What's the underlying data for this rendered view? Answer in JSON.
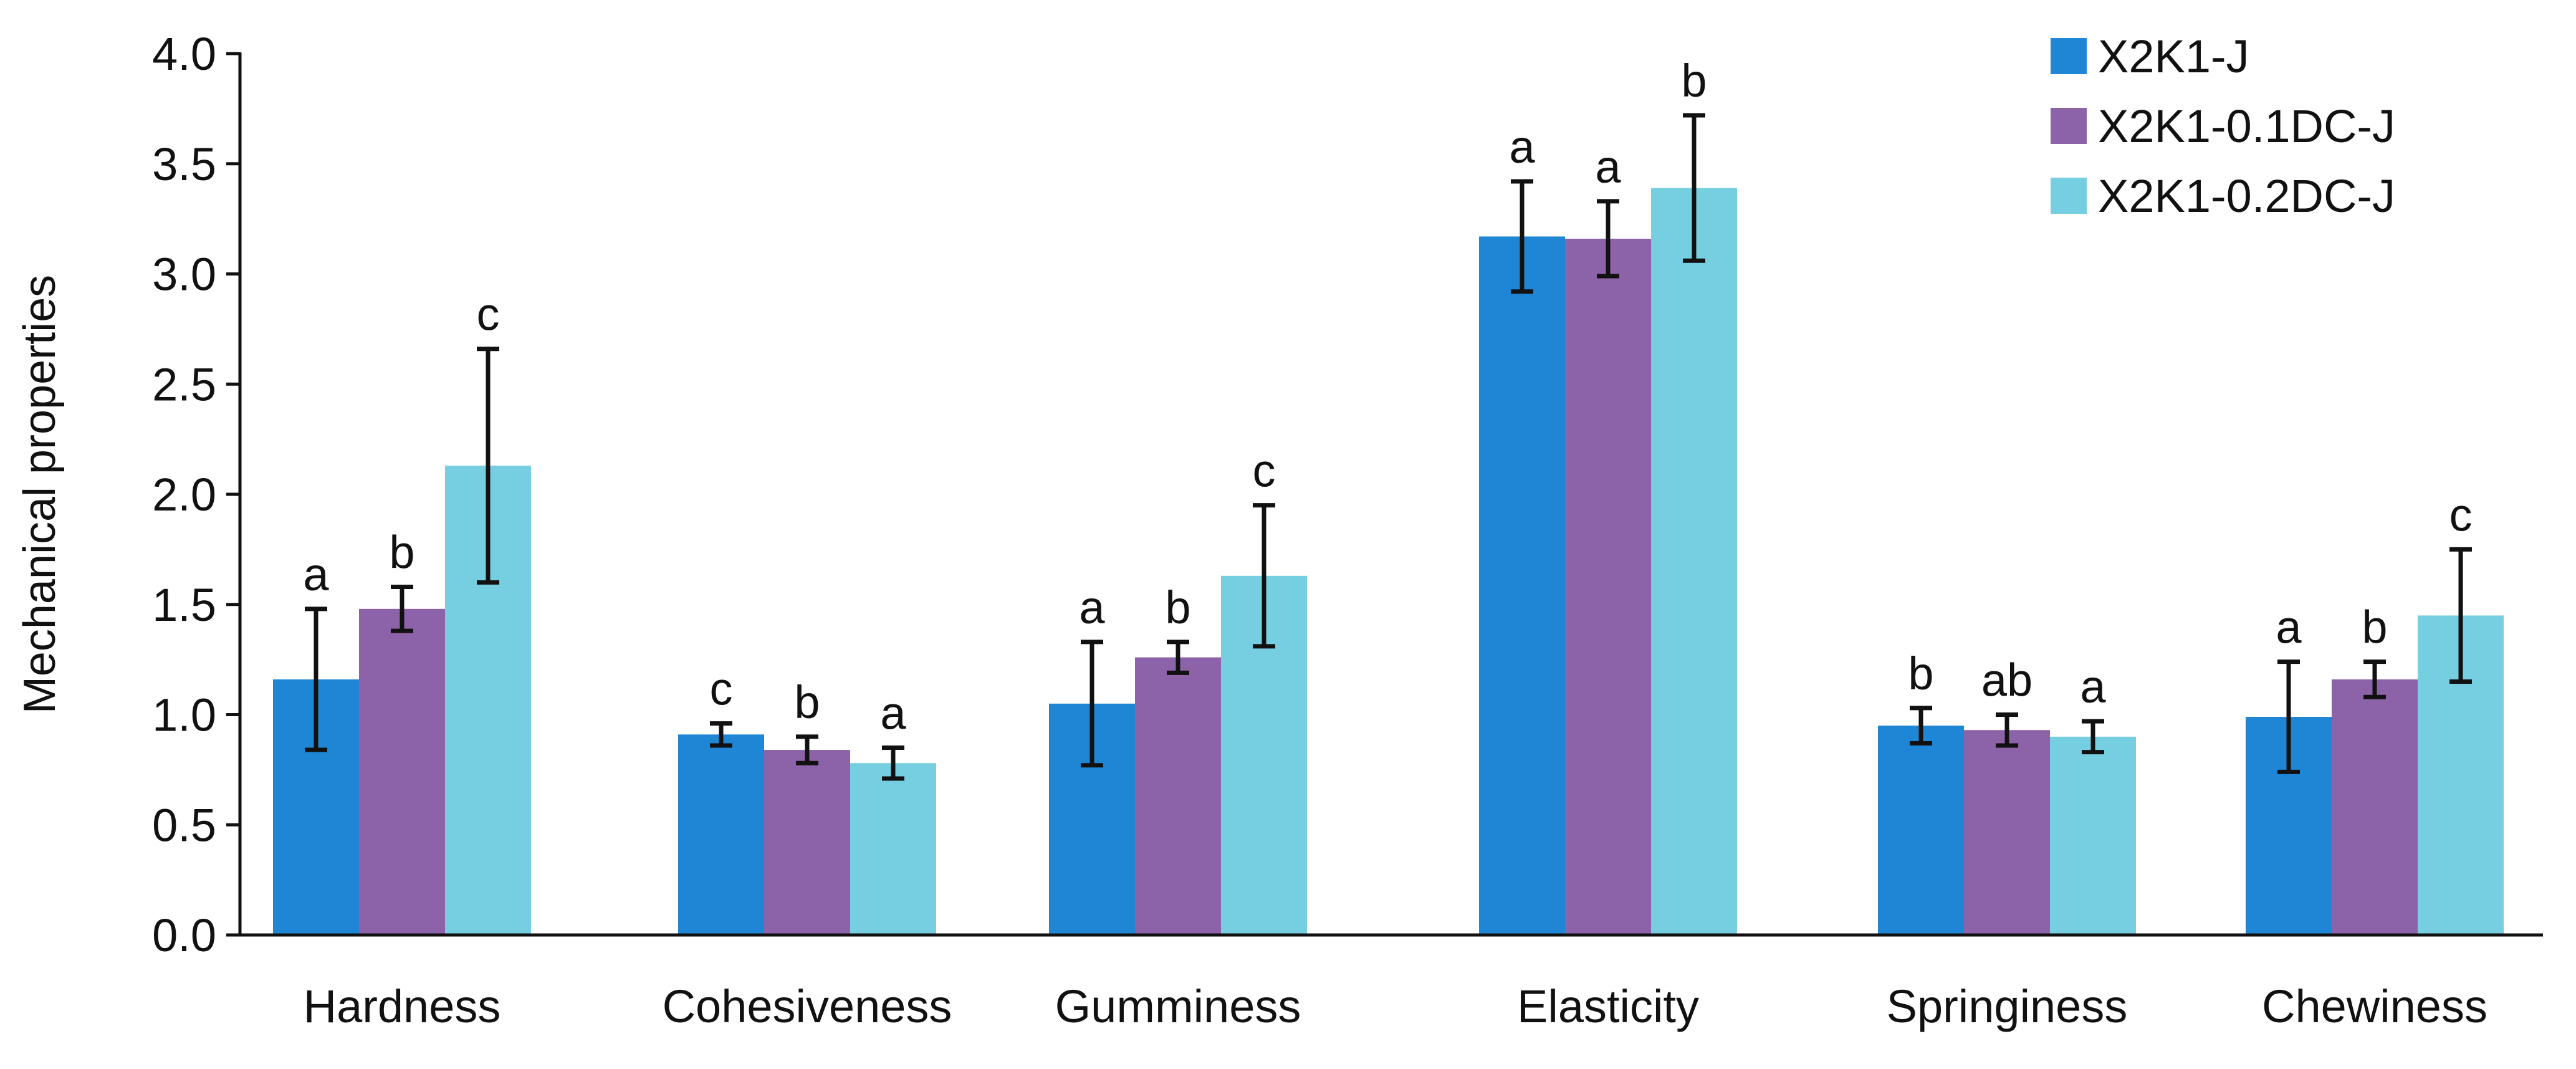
{
  "chart_data": {
    "type": "bar",
    "title": "",
    "xlabel": "",
    "ylabel": "Mechanical properties",
    "ylim": [
      0,
      4.0
    ],
    "ytick_step": 0.5,
    "ytick_labels": [
      "0.0",
      "0.5",
      "1.0",
      "1.5",
      "2.0",
      "2.5",
      "3.0",
      "3.5",
      "4.0"
    ],
    "grid": false,
    "legend_position": "top-right",
    "categories": [
      "Hardness",
      "Cohesiveness",
      "Gumminess",
      "Elasticity",
      "Springiness",
      "Chewiness"
    ],
    "series": [
      {
        "name": "X2K1-J",
        "color": "#1f86d6",
        "values": [
          1.16,
          0.91,
          1.05,
          3.17,
          0.95,
          0.99
        ],
        "errors": [
          0.32,
          0.05,
          0.28,
          0.25,
          0.08,
          0.25
        ],
        "significance": [
          "a",
          "c",
          "a",
          "a",
          "b",
          "a"
        ]
      },
      {
        "name": "X2K1-0.1DC-J",
        "color": "#8c62a8",
        "values": [
          1.48,
          0.84,
          1.26,
          3.16,
          0.93,
          1.16
        ],
        "errors": [
          0.1,
          0.06,
          0.07,
          0.17,
          0.07,
          0.08
        ],
        "significance": [
          "b",
          "b",
          "b",
          "a",
          "ab",
          "b"
        ]
      },
      {
        "name": "X2K1-0.2DC-J",
        "color": "#76cfe0",
        "values": [
          2.13,
          0.78,
          1.63,
          3.39,
          0.9,
          1.45
        ],
        "errors": [
          0.53,
          0.07,
          0.32,
          0.33,
          0.07,
          0.3
        ],
        "significance": [
          "c",
          "a",
          "c",
          "b",
          "a",
          "c"
        ]
      }
    ]
  }
}
